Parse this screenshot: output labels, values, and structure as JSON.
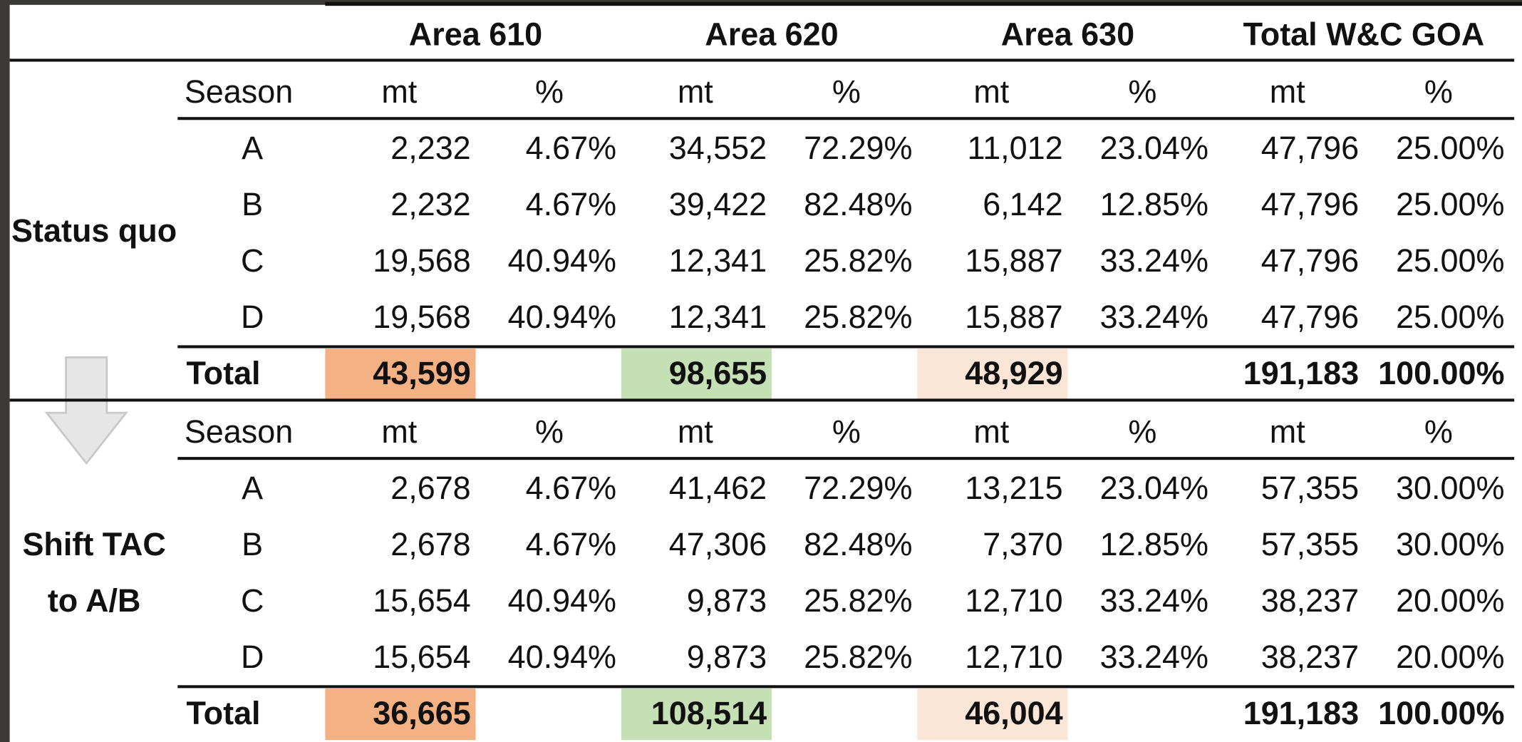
{
  "header": {
    "columns": [
      "Area 610",
      "Area 620",
      "Area 630",
      "Total W&C GOA"
    ]
  },
  "sections": [
    {
      "label": [
        "Status quo"
      ],
      "columns": [
        "Season",
        "mt",
        "%",
        "mt",
        "%",
        "mt",
        "%",
        "mt",
        "%"
      ],
      "rows": [
        [
          "A",
          "2,232",
          "4.67%",
          "34,552",
          "72.29%",
          "11,012",
          "23.04%",
          "47,796",
          "25.00%"
        ],
        [
          "B",
          "2,232",
          "4.67%",
          "39,422",
          "82.48%",
          "6,142",
          "12.85%",
          "47,796",
          "25.00%"
        ],
        [
          "C",
          "19,568",
          "40.94%",
          "12,341",
          "25.82%",
          "15,887",
          "33.24%",
          "47,796",
          "25.00%"
        ],
        [
          "D",
          "19,568",
          "40.94%",
          "12,341",
          "25.82%",
          "15,887",
          "33.24%",
          "47,796",
          "25.00%"
        ]
      ],
      "total": {
        "label": "Total",
        "values": [
          "43,599",
          "98,655",
          "48,929",
          "191,183",
          "100.00%"
        ]
      }
    },
    {
      "label": [
        "Shift TAC",
        "to A/B"
      ],
      "columns": [
        "Season",
        "mt",
        "%",
        "mt",
        "%",
        "mt",
        "%",
        "mt",
        "%"
      ],
      "rows": [
        [
          "A",
          "2,678",
          "4.67%",
          "41,462",
          "72.29%",
          "13,215",
          "23.04%",
          "57,355",
          "30.00%"
        ],
        [
          "B",
          "2,678",
          "4.67%",
          "47,306",
          "82.48%",
          "7,370",
          "12.85%",
          "57,355",
          "30.00%"
        ],
        [
          "C",
          "15,654",
          "40.94%",
          "9,873",
          "25.82%",
          "12,710",
          "33.24%",
          "38,237",
          "20.00%"
        ],
        [
          "D",
          "15,654",
          "40.94%",
          "9,873",
          "25.82%",
          "12,710",
          "33.24%",
          "38,237",
          "20.00%"
        ]
      ],
      "total": {
        "label": "Total",
        "values": [
          "36,665",
          "108,514",
          "46,004",
          "191,183",
          "100.00%"
        ]
      }
    }
  ]
}
